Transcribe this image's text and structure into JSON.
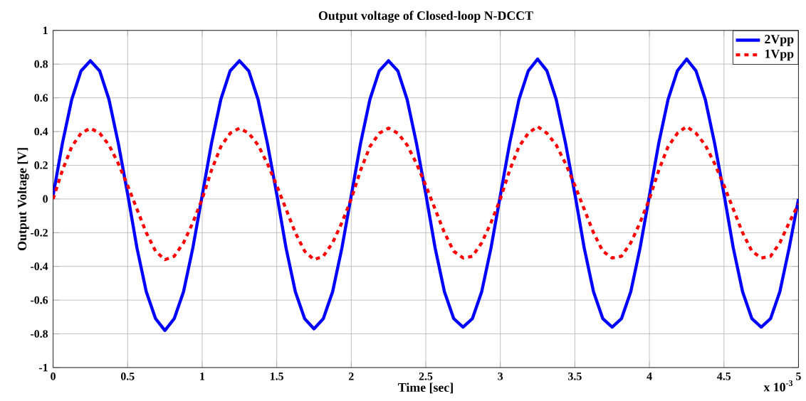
{
  "chart_data": {
    "type": "line",
    "title": "Output voltage of Closed-loop N-DCCT",
    "xlabel": "Time [sec]",
    "ylabel": "Output Voltage [V]",
    "annotations": [
      "x 10$^{-3}$"
    ],
    "x": [
      0,
      0.0625,
      0.125,
      0.1875,
      0.25,
      0.3125,
      0.375,
      0.4375,
      0.5,
      0.5625,
      0.625,
      0.6875,
      0.75,
      0.8125,
      0.875,
      0.9375,
      1,
      1.0625,
      1.125,
      1.1875,
      1.25,
      1.3125,
      1.375,
      1.4375,
      1.5,
      1.5625,
      1.625,
      1.6875,
      1.75,
      1.8125,
      1.875,
      1.9375,
      2,
      2.0625,
      2.125,
      2.1875,
      2.25,
      2.3125,
      2.375,
      2.4375,
      2.5,
      2.5625,
      2.625,
      2.6875,
      2.75,
      2.8125,
      2.875,
      2.9375,
      3,
      3.0625,
      3.125,
      3.1875,
      3.25,
      3.3125,
      3.375,
      3.4375,
      3.5,
      3.5625,
      3.625,
      3.6875,
      3.75,
      3.8125,
      3.875,
      3.9375,
      4,
      4.0625,
      4.125,
      4.1875,
      4.25,
      4.3125,
      4.375,
      4.4375,
      4.5,
      4.5625,
      4.625,
      4.6875,
      4.75,
      4.8125,
      4.875,
      4.9375,
      5
    ],
    "series": [
      {
        "name": "2Vpp",
        "color": "#0000ff",
        "line_style": "solid",
        "values": [
          0.02,
          0.33,
          0.59,
          0.76,
          0.82,
          0.76,
          0.59,
          0.33,
          0.03,
          -0.29,
          -0.55,
          -0.71,
          -0.78,
          -0.71,
          -0.55,
          -0.29,
          0.02,
          0.33,
          0.59,
          0.76,
          0.82,
          0.76,
          0.59,
          0.33,
          0.03,
          -0.29,
          -0.55,
          -0.71,
          -0.77,
          -0.71,
          -0.55,
          -0.29,
          0.02,
          0.33,
          0.59,
          0.76,
          0.82,
          0.76,
          0.59,
          0.33,
          0.03,
          -0.29,
          -0.55,
          -0.71,
          -0.76,
          -0.71,
          -0.55,
          -0.29,
          0.02,
          0.33,
          0.59,
          0.76,
          0.83,
          0.76,
          0.59,
          0.33,
          0.03,
          -0.29,
          -0.55,
          -0.71,
          -0.76,
          -0.71,
          -0.55,
          -0.29,
          0.02,
          0.33,
          0.59,
          0.76,
          0.83,
          0.76,
          0.59,
          0.33,
          0.03,
          -0.29,
          -0.55,
          -0.71,
          -0.76,
          -0.71,
          -0.55,
          -0.29,
          0.0
        ]
      },
      {
        "name": "1Vpp",
        "color": "#ff0000",
        "line_style": "dashed",
        "values": [
          0.0,
          0.17,
          0.31,
          0.39,
          0.42,
          0.39,
          0.32,
          0.21,
          0.08,
          -0.06,
          -0.2,
          -0.31,
          -0.36,
          -0.34,
          -0.26,
          -0.14,
          0.0,
          0.17,
          0.31,
          0.39,
          0.42,
          0.39,
          0.32,
          0.21,
          0.08,
          -0.06,
          -0.2,
          -0.31,
          -0.36,
          -0.34,
          -0.26,
          -0.14,
          0.0,
          0.17,
          0.31,
          0.39,
          0.42,
          0.39,
          0.32,
          0.21,
          0.08,
          -0.06,
          -0.2,
          -0.31,
          -0.35,
          -0.34,
          -0.26,
          -0.14,
          0.0,
          0.17,
          0.31,
          0.39,
          0.43,
          0.39,
          0.32,
          0.21,
          0.08,
          -0.06,
          -0.2,
          -0.31,
          -0.35,
          -0.34,
          -0.26,
          -0.14,
          0.0,
          0.17,
          0.31,
          0.39,
          0.43,
          0.39,
          0.32,
          0.21,
          0.08,
          -0.06,
          -0.2,
          -0.31,
          -0.35,
          -0.34,
          -0.26,
          -0.14,
          -0.03
        ]
      }
    ],
    "xlim": [
      0,
      5
    ],
    "ylim": [
      -1,
      1
    ],
    "xticks": [
      0,
      0.5,
      1,
      1.5,
      2,
      2.5,
      3,
      3.5,
      4,
      4.5,
      5
    ],
    "yticks": [
      -1,
      -0.8,
      -0.6,
      -0.4,
      -0.2,
      0,
      0.2,
      0.4,
      0.6,
      0.8,
      1
    ],
    "grid": true,
    "legend": "top right"
  }
}
